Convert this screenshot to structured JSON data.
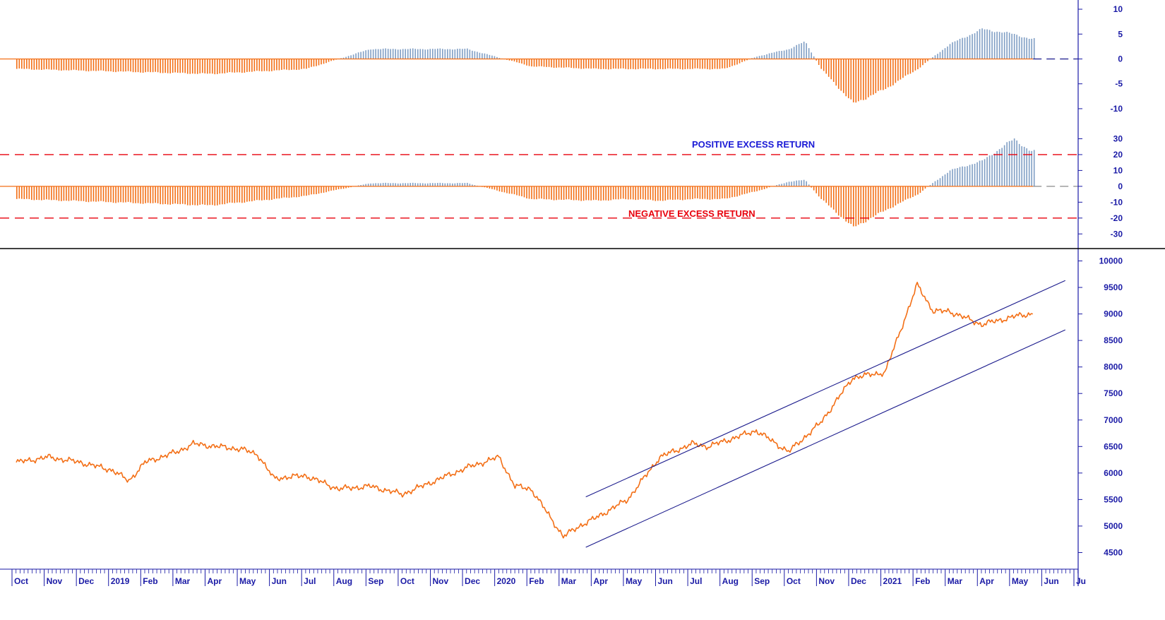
{
  "colors": {
    "negative": "#f36f16",
    "positive": "#7f9ec4",
    "price": "#f36f16",
    "channel": "#1a1a8c",
    "axis": "#1a1aa6",
    "positive_text": "#1a1ad6",
    "negative_text": "#e8000c",
    "band": "#e8000c"
  },
  "axis": {
    "months": [
      "Oct",
      "Nov",
      "Dec",
      "2019",
      "Feb",
      "Mar",
      "Apr",
      "May",
      "Jun",
      "Jul",
      "Aug",
      "Sep",
      "Oct",
      "Nov",
      "Dec",
      "2020",
      "Feb",
      "Mar",
      "Apr",
      "May",
      "Jun",
      "Jul",
      "Aug",
      "Sep",
      "Oct",
      "Nov",
      "Dec",
      "2021",
      "Feb",
      "Mar",
      "Apr",
      "May",
      "Jun",
      "Ju"
    ]
  },
  "chart_data": [
    {
      "type": "bar",
      "panel": "top",
      "ylim": [
        -12,
        11
      ],
      "yticks": [
        10,
        5,
        0,
        -5,
        -10
      ],
      "x": [
        0,
        3,
        6,
        9,
        11,
        12,
        14,
        16,
        18,
        19,
        20,
        21,
        22,
        23,
        24,
        24.5,
        25,
        26,
        27,
        28,
        29,
        30,
        31,
        31.5
      ],
      "values": [
        -2,
        -2.5,
        -3,
        -2,
        2,
        2,
        2,
        -1.5,
        -2,
        -2,
        -2,
        -2,
        -2,
        0.5,
        2,
        3.5,
        -2,
        -9,
        -6,
        -2,
        3,
        6,
        5,
        4
      ]
    },
    {
      "type": "bar",
      "panel": "middle",
      "ylim": [
        -33,
        36
      ],
      "yticks": [
        30,
        20,
        10,
        0,
        -10,
        -20,
        -30
      ],
      "x": [
        0,
        3,
        6,
        9,
        11,
        12,
        14,
        16,
        18,
        19,
        20,
        21,
        22,
        23,
        24,
        24.5,
        25,
        26,
        27,
        28,
        29,
        30,
        31,
        31.5
      ],
      "values": [
        -8,
        -10,
        -12,
        -6,
        2,
        2,
        2,
        -8,
        -9,
        -8,
        -9,
        -8,
        -8,
        -3,
        3,
        4,
        -8,
        -26,
        -15,
        -5,
        10,
        16,
        30,
        22
      ],
      "reference_lines": [
        20,
        -20
      ],
      "annotations": [
        "POSITIVE EXCESS RETURN",
        "NEGATIVE EXCESS RETURN"
      ]
    },
    {
      "type": "line",
      "panel": "bottom",
      "ylim": [
        4200,
        10100
      ],
      "yticks": [
        10000,
        9500,
        9000,
        8500,
        8000,
        7500,
        7000,
        6500,
        6000,
        5500,
        5000,
        4500
      ],
      "x": [
        0,
        1,
        2,
        3,
        3.5,
        4,
        5,
        5.5,
        7,
        7.5,
        8,
        9,
        10,
        11,
        12,
        13,
        14,
        15,
        15.5,
        16,
        17,
        17.5,
        18,
        19,
        20,
        21,
        21.5,
        22,
        23,
        24,
        25,
        26,
        27,
        28,
        28.5,
        29,
        30,
        31,
        31.5
      ],
      "values": [
        6200,
        6300,
        6200,
        6050,
        5850,
        6200,
        6400,
        6550,
        6450,
        6350,
        5900,
        5950,
        5700,
        5750,
        5600,
        5850,
        6100,
        6300,
        5750,
        5700,
        4800,
        5000,
        5150,
        5500,
        6300,
        6550,
        6500,
        6600,
        6800,
        6400,
        6950,
        7800,
        7900,
        9550,
        9050,
        9050,
        8800,
        8950,
        9000
      ],
      "channel_upper": {
        "x": [
          17.7,
          32.6
        ],
        "y": [
          5550,
          9630
        ]
      },
      "channel_lower": {
        "x": [
          17.7,
          32.6
        ],
        "y": [
          4600,
          8700
        ]
      }
    }
  ]
}
